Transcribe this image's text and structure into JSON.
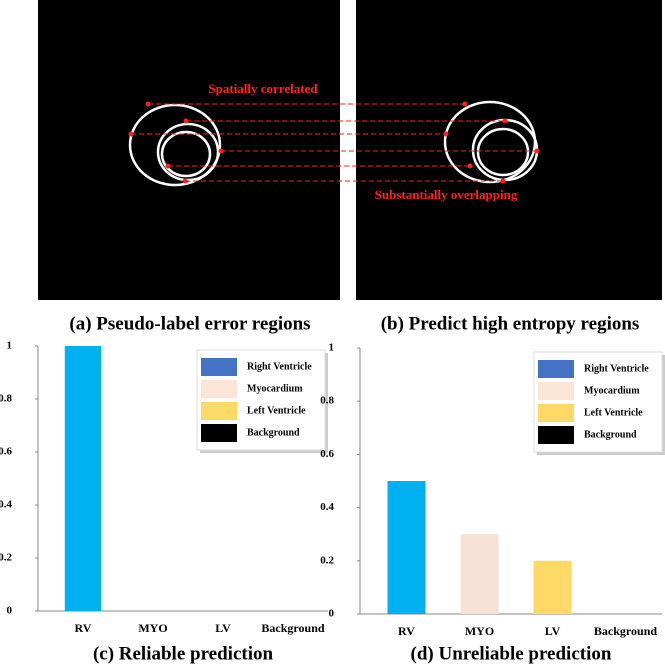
{
  "panels": [
    {
      "caption": "(a) Pseudo-label error regions"
    },
    {
      "caption": "(b) Predict high entropy regions"
    }
  ],
  "annotations": [
    "Spatially correlated",
    "Substantially overlapping"
  ],
  "chart_data": [
    {
      "type": "bar",
      "title": "(c) Reliable prediction",
      "categories": [
        "RV",
        "MYO",
        "LV",
        "Background"
      ],
      "values": [
        1,
        0,
        0,
        0
      ],
      "colors": [
        "#00b0f0",
        "#f8e1d6",
        "#ffd965",
        "#000000"
      ],
      "ylim": [
        0,
        1
      ],
      "yticks": [
        0,
        0.2,
        0.4,
        0.6,
        0.8,
        1
      ],
      "legend": [
        {
          "name": "Right Ventricle",
          "color": "#4472c4"
        },
        {
          "name": "Myocardium",
          "color": "#fbe5d6"
        },
        {
          "name": "Left Ventricle",
          "color": "#ffd966"
        },
        {
          "name": "Background",
          "color": "#000000"
        }
      ]
    },
    {
      "type": "bar",
      "title": "(d) Unreliable prediction",
      "categories": [
        "RV",
        "MYO",
        "LV",
        "Background"
      ],
      "values": [
        0.5,
        0.3,
        0.2,
        0
      ],
      "colors": [
        "#00b0f0",
        "#f8e1d6",
        "#ffd965",
        "#000000"
      ],
      "ylim": [
        0,
        1
      ],
      "yticks": [
        0,
        0.2,
        0.4,
        0.6,
        0.8,
        1
      ],
      "legend": [
        {
          "name": "Right Ventricle",
          "color": "#4472c4"
        },
        {
          "name": "Myocardium",
          "color": "#fbe5d6"
        },
        {
          "name": "Left Ventricle",
          "color": "#ffd966"
        },
        {
          "name": "Background",
          "color": "#000000"
        }
      ]
    }
  ]
}
